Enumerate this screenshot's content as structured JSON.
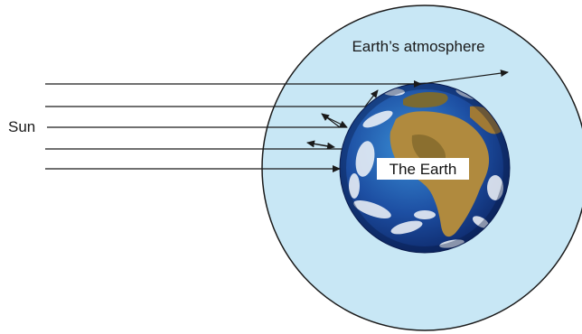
{
  "labels": {
    "sun": "Sun",
    "atmosphere": "Earth’s atmosphere",
    "earth": "The Earth"
  },
  "colors": {
    "atmosphere_fill": "#c8e7f5",
    "outline": "#1a1a1a",
    "ocean_deep": "#0f2f7a",
    "ocean_light": "#2f7cc4",
    "land": "#b08a3e",
    "land_dark": "#6e5a22",
    "cloud": "#f4f7fb",
    "label_box": "#ffffff"
  }
}
